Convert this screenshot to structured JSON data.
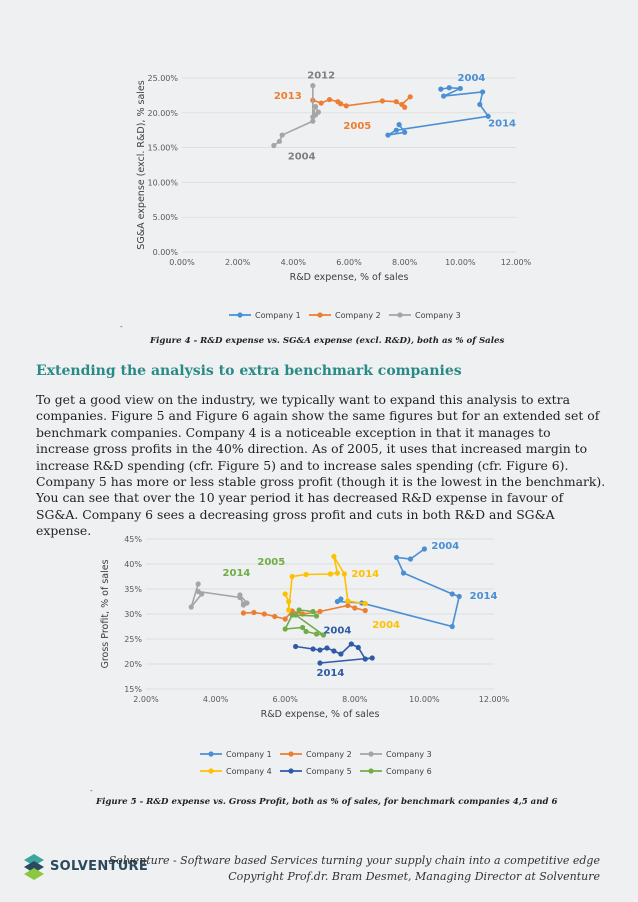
{
  "figure4": {
    "caption": "Figure 4 - R&D expense vs. SG&A expense (excl. R&D), both as % of Sales",
    "chart_data": {
      "type": "scatter",
      "xlabel": "R&D expense, % of sales",
      "ylabel": "SG&A expense (excl. R&D), % sales",
      "xlim": [
        0,
        12
      ],
      "ylim": [
        0,
        25
      ],
      "xticks": [
        "0.00%",
        "2.00%",
        "4.00%",
        "6.00%",
        "8.00%",
        "10.00%",
        "12.00%"
      ],
      "yticks": [
        "0.00%",
        "5.00%",
        "10.00%",
        "15.00%",
        "20.00%",
        "25.00%"
      ],
      "grid": true,
      "legend": "bottom",
      "series": [
        {
          "name": "Company 1",
          "color": "#4a8fd4",
          "x": [
            9.3,
            9.6,
            10.0,
            9.4,
            10.8,
            10.7,
            11.0,
            7.7,
            7.4,
            8.0,
            7.8
          ],
          "y": [
            23.4,
            23.6,
            23.5,
            22.4,
            23.0,
            21.2,
            19.5,
            17.5,
            16.8,
            17.2,
            18.3
          ]
        },
        {
          "name": "Company 2",
          "color": "#ed7d31",
          "x": [
            4.7,
            5.0,
            5.3,
            5.6,
            5.7,
            5.9,
            7.2,
            7.7,
            8.0,
            7.9,
            8.2
          ],
          "y": [
            21.8,
            21.4,
            21.9,
            21.6,
            21.3,
            21.0,
            21.7,
            21.6,
            20.8,
            21.2,
            22.3
          ]
        },
        {
          "name": "Company 3",
          "color": "#a5a5a5",
          "x": [
            3.3,
            3.5,
            3.6,
            4.7,
            4.8,
            4.9,
            4.8,
            4.7,
            4.7
          ],
          "y": [
            15.3,
            15.9,
            16.8,
            18.8,
            19.7,
            20.1,
            20.9,
            19.4,
            23.9
          ]
        }
      ],
      "annotations": [
        {
          "text": "2004",
          "color": "#4a8fd4",
          "x": 9.9,
          "y": 24.6
        },
        {
          "text": "2014",
          "color": "#4a8fd4",
          "x": 11.0,
          "y": 18.0
        },
        {
          "text": "2013",
          "color": "#ed7d31",
          "x": 3.3,
          "y": 22.0
        },
        {
          "text": "2005",
          "color": "#ed7d31",
          "x": 5.8,
          "y": 17.7
        },
        {
          "text": "2012",
          "color": "#7f7f7f",
          "x": 4.5,
          "y": 24.9
        },
        {
          "text": "2004",
          "color": "#7f7f7f",
          "x": 3.8,
          "y": 13.3
        }
      ]
    }
  },
  "section": {
    "heading": "Extending the analysis to extra benchmark companies",
    "paragraph": "To get a good view on the industry, we typically want to expand this analysis to extra companies. Figure 5 and Figure 6 again show the same figures but for an extended set of benchmark companies. Company 4 is a noticeable exception in that it manages to increase gross profits in the 40% direction. As of 2005, it uses that increased margin to increase R&D spending (cfr. Figure 5) and to increase sales spending (cfr. Figure 6). Company 5 has more or less stable gross profit (though it is the lowest in the benchmark). You can see that over the 10 year period it has decreased R&D expense in favour of SG&A. Company 6 sees a decreasing gross profit and cuts in both R&D and SG&A expense."
  },
  "figure5": {
    "caption": "Figure 5 - R&D expense vs. Gross Profit, both as % of sales, for benchmark companies 4,5 and 6",
    "chart_data": {
      "type": "scatter",
      "xlabel": "R&D expense, % of sales",
      "ylabel": "Gross Profit, % of sales",
      "xlim": [
        2,
        12
      ],
      "ylim": [
        15,
        45
      ],
      "xticks": [
        "2.00%",
        "4.00%",
        "6.00%",
        "8.00%",
        "10.00%",
        "12.00%"
      ],
      "yticks": [
        "15%",
        "20%",
        "25%",
        "30%",
        "35%",
        "40%",
        "45%"
      ],
      "grid": true,
      "legend": "bottom",
      "series": [
        {
          "name": "Company 1",
          "color": "#4a8fd4",
          "x": [
            10.0,
            9.6,
            9.2,
            9.4,
            10.8,
            11.0,
            10.8,
            8.2,
            7.5,
            7.6
          ],
          "y": [
            43.0,
            41.0,
            41.3,
            38.2,
            34.0,
            33.5,
            27.5,
            32.2,
            32.5,
            33.0
          ]
        },
        {
          "name": "Company 2",
          "color": "#ed7d31",
          "x": [
            4.8,
            5.1,
            5.4,
            5.7,
            6.0,
            6.2,
            6.5,
            7.0,
            7.8,
            8.0,
            8.3
          ],
          "y": [
            30.2,
            30.3,
            30.0,
            29.5,
            29.0,
            30.6,
            30.0,
            30.5,
            31.7,
            31.2,
            30.7
          ]
        },
        {
          "name": "Company 3",
          "color": "#a5a5a5",
          "x": [
            3.5,
            3.3,
            3.6,
            3.5,
            4.7,
            4.8,
            4.9,
            4.7,
            4.8
          ],
          "y": [
            36.0,
            31.4,
            34.0,
            34.5,
            33.3,
            32.0,
            32.2,
            33.8,
            31.8
          ]
        },
        {
          "name": "Company 4",
          "color": "#ffc000",
          "x": [
            6.0,
            6.1,
            6.1,
            6.2,
            6.6,
            7.3,
            7.5,
            7.4,
            7.7,
            7.8,
            8.3
          ],
          "y": [
            34.0,
            32.5,
            30.8,
            37.5,
            37.9,
            38.0,
            38.2,
            41.5,
            38.0,
            32.6,
            32.1
          ]
        },
        {
          "name": "Company 5",
          "color": "#2f5aa8",
          "x": [
            6.3,
            6.8,
            7.0,
            7.2,
            7.4,
            7.6,
            7.9,
            8.1,
            8.3,
            8.5,
            7.0
          ],
          "y": [
            23.5,
            23.0,
            22.8,
            23.2,
            22.6,
            22.0,
            24.0,
            23.3,
            21.0,
            21.2,
            20.2
          ]
        },
        {
          "name": "Company 6",
          "color": "#70ad47",
          "x": [
            6.4,
            6.8,
            6.9,
            6.2,
            6.0,
            6.5,
            6.6,
            6.9,
            7.1,
            6.3
          ],
          "y": [
            30.8,
            30.5,
            29.6,
            29.8,
            27.0,
            27.3,
            26.5,
            26.0,
            25.8,
            29.8
          ]
        }
      ],
      "annotations": [
        {
          "text": "2004",
          "color": "#4a8fd4",
          "x": 10.2,
          "y": 43.0
        },
        {
          "text": "2014",
          "color": "#4a8fd4",
          "x": 11.3,
          "y": 33.0
        },
        {
          "text": "2005",
          "color": "#70ad47",
          "x": 5.2,
          "y": 39.8
        },
        {
          "text": "2014",
          "color": "#70ad47",
          "x": 4.2,
          "y": 37.6
        },
        {
          "text": "2014",
          "color": "#ffc000",
          "x": 7.9,
          "y": 37.4
        },
        {
          "text": "2004",
          "color": "#ffc000",
          "x": 8.5,
          "y": 27.2
        },
        {
          "text": "2004",
          "color": "#2f5aa8",
          "x": 7.1,
          "y": 26.1
        },
        {
          "text": "2014",
          "color": "#2f5aa8",
          "x": 6.9,
          "y": 17.6
        }
      ]
    }
  },
  "footer": {
    "line1": "Solventure - Software based Services turning your supply chain into a competitive edge",
    "line2": "Copyright Prof.dr. Bram Desmet, Managing Director at Solventure",
    "logo_text": "SOLVENTURE",
    "logo_colors": [
      "#3aa6a0",
      "#2b4a5e",
      "#8dc63f"
    ]
  }
}
